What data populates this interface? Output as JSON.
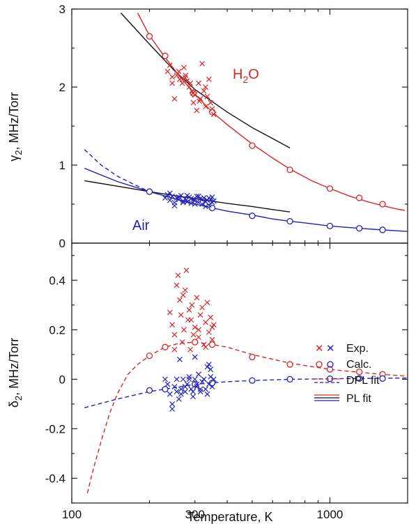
{
  "colors": {
    "h2o": "#d62728",
    "air": "#1f1fbf",
    "pl_h2o": "#111111",
    "axis": "#222222"
  },
  "chart_data": [
    {
      "type": "scatter",
      "panel": "top",
      "ylabel_symbol": "γ",
      "ylabel_sub": "2",
      "ylabel_unit": ", MHz/Torr",
      "xscale": "log",
      "xlim": [
        100,
        2000
      ],
      "ylim": [
        0,
        3
      ],
      "yticks": [
        "0",
        "1",
        "2",
        "3"
      ],
      "annotations": {
        "h2o_main": "H",
        "h2o_sub": "2",
        "h2o_end": "O",
        "air": "Air"
      },
      "series": [
        {
          "key": "h2o_calc",
          "color": "h2o",
          "marker": "circle",
          "x": [
            200,
            230,
            296,
            350,
            500,
            700,
            1000,
            1300,
            1600
          ],
          "y": [
            2.65,
            2.4,
            1.92,
            1.68,
            1.25,
            0.94,
            0.7,
            0.58,
            0.5
          ]
        },
        {
          "key": "h2o_exp",
          "color": "h2o",
          "marker": "x",
          "x": [
            235,
            240,
            245,
            250,
            255,
            262,
            268,
            272,
            276,
            280,
            285,
            288,
            292,
            296,
            300,
            305,
            310,
            315,
            320,
            325,
            330,
            335,
            340,
            345,
            350,
            355,
            245,
            260,
            275,
            295,
            312,
            330
          ],
          "y": [
            2.2,
            2.28,
            2.13,
            1.85,
            2.15,
            2.1,
            2.05,
            2.25,
            2.15,
            2.08,
            2.0,
            2.05,
            1.95,
            1.8,
            1.9,
            1.7,
            2.05,
            1.85,
            2.3,
            1.95,
            1.75,
            1.88,
            2.1,
            1.8,
            1.72,
            1.65,
            2.05,
            2.2,
            2.12,
            1.92,
            1.82,
            2.0
          ]
        },
        {
          "key": "h2o_pl",
          "color": "pl_h2o",
          "style": "solid",
          "x": [
            155,
            200,
            250,
            300,
            400,
            500,
            600,
            700
          ],
          "y": [
            2.95,
            2.55,
            2.21,
            1.97,
            1.68,
            1.48,
            1.34,
            1.22
          ]
        },
        {
          "key": "h2o_dpl",
          "color": "h2o",
          "style": "solid",
          "x": [
            180,
            200,
            230,
            260,
            296,
            350,
            400,
            500,
            600,
            700,
            850,
            1000,
            1200,
            1400,
            1600,
            1800,
            1950
          ],
          "y": [
            2.95,
            2.66,
            2.38,
            2.15,
            1.93,
            1.68,
            1.52,
            1.27,
            1.09,
            0.95,
            0.8,
            0.7,
            0.6,
            0.53,
            0.48,
            0.44,
            0.42
          ]
        },
        {
          "key": "air_calc",
          "color": "air",
          "marker": "circle",
          "x": [
            200,
            350,
            500,
            700,
            1000,
            1300,
            1600
          ],
          "y": [
            0.66,
            0.45,
            0.35,
            0.28,
            0.22,
            0.19,
            0.17
          ]
        },
        {
          "key": "air_exp",
          "color": "air",
          "marker": "x",
          "x": [
            230,
            235,
            240,
            245,
            250,
            255,
            260,
            265,
            270,
            275,
            280,
            285,
            290,
            295,
            300,
            305,
            310,
            315,
            320,
            325,
            330,
            335,
            340,
            345,
            350,
            355,
            240,
            260,
            280,
            300,
            320,
            340,
            250,
            270,
            290,
            310,
            330,
            350
          ],
          "y": [
            0.58,
            0.62,
            0.55,
            0.6,
            0.52,
            0.58,
            0.56,
            0.61,
            0.54,
            0.57,
            0.53,
            0.59,
            0.51,
            0.56,
            0.55,
            0.6,
            0.52,
            0.57,
            0.5,
            0.58,
            0.53,
            0.55,
            0.49,
            0.56,
            0.52,
            0.54,
            0.64,
            0.59,
            0.61,
            0.5,
            0.56,
            0.58,
            0.48,
            0.52,
            0.57,
            0.6,
            0.47,
            0.59
          ]
        },
        {
          "key": "air_pl_black",
          "color": "pl_h2o",
          "style": "solid",
          "x": [
            112,
            150,
            200,
            250,
            300,
            400,
            500,
            600,
            700
          ],
          "y": [
            0.8,
            0.73,
            0.66,
            0.61,
            0.57,
            0.51,
            0.47,
            0.43,
            0.4
          ]
        },
        {
          "key": "air_pl_blue",
          "color": "air",
          "style": "solid",
          "x": [
            112,
            150,
            200,
            250,
            300,
            400,
            500,
            600,
            700,
            800,
            1000,
            1300,
            1600,
            2000
          ],
          "y": [
            0.96,
            0.79,
            0.66,
            0.57,
            0.5,
            0.41,
            0.36,
            0.31,
            0.28,
            0.26,
            0.22,
            0.19,
            0.17,
            0.15
          ]
        },
        {
          "key": "air_dpl",
          "color": "air",
          "style": "dashed",
          "x": [
            112,
            130,
            150,
            175,
            200
          ],
          "y": [
            1.2,
            1.0,
            0.86,
            0.75,
            0.66
          ]
        }
      ]
    },
    {
      "type": "scatter",
      "panel": "bottom",
      "ylabel_symbol": "δ",
      "ylabel_sub": "2",
      "ylabel_unit": ", MHz/Torr",
      "xlabel": "Temperature, K",
      "xscale": "log",
      "xlim": [
        100,
        2000
      ],
      "ylim": [
        -0.5,
        0.55
      ],
      "yticks": [
        "-0.4",
        "-0.2",
        "0",
        "0.2",
        "0.4"
      ],
      "xticks": [
        "100",
        "300",
        "1000"
      ],
      "series": [
        {
          "key": "h2o_calc",
          "color": "h2o",
          "marker": "circle",
          "x": [
            200,
            230,
            300,
            350,
            500,
            700,
            1000,
            1300,
            1600
          ],
          "y": [
            0.095,
            0.13,
            0.15,
            0.14,
            0.09,
            0.06,
            0.04,
            0.03,
            0.02
          ]
        },
        {
          "key": "h2o_exp",
          "color": "h2o",
          "marker": "x",
          "x": [
            240,
            245,
            250,
            255,
            258,
            262,
            265,
            268,
            272,
            275,
            278,
            282,
            285,
            288,
            292,
            296,
            300,
            305,
            310,
            315,
            320,
            325,
            330,
            335,
            340,
            345,
            350,
            355,
            250,
            270,
            290,
            310,
            330,
            350
          ],
          "y": [
            0.27,
            0.22,
            0.18,
            0.38,
            0.42,
            0.32,
            0.26,
            0.15,
            0.2,
            0.36,
            0.44,
            0.24,
            0.28,
            0.12,
            0.3,
            0.18,
            0.21,
            0.33,
            0.17,
            0.26,
            0.29,
            0.14,
            0.23,
            0.31,
            0.19,
            0.25,
            0.16,
            0.22,
            0.12,
            0.34,
            0.24,
            0.2,
            0.13,
            0.21
          ]
        },
        {
          "key": "h2o_dpl",
          "color": "h2o",
          "style": "dashed",
          "x": [
            115,
            120,
            130,
            140,
            150,
            165,
            180,
            200,
            230,
            260,
            300,
            350,
            400,
            500,
            700,
            1000,
            1300,
            1600,
            2000
          ],
          "y": [
            -0.46,
            -0.38,
            -0.25,
            -0.14,
            -0.06,
            0.02,
            0.06,
            0.095,
            0.13,
            0.145,
            0.15,
            0.14,
            0.13,
            0.1,
            0.065,
            0.04,
            0.028,
            0.02,
            0.012
          ]
        },
        {
          "key": "air_calc",
          "color": "air",
          "marker": "circle",
          "x": [
            200,
            230,
            300,
            350,
            500,
            700,
            1000,
            1300,
            1600
          ],
          "y": [
            -0.045,
            -0.04,
            -0.02,
            -0.015,
            -0.005,
            0.0,
            0.002,
            0.003,
            0.003
          ]
        },
        {
          "key": "air_exp",
          "color": "air",
          "marker": "x",
          "x": [
            230,
            235,
            240,
            245,
            250,
            255,
            260,
            265,
            270,
            275,
            280,
            285,
            290,
            295,
            300,
            305,
            310,
            315,
            320,
            325,
            330,
            335,
            340,
            345,
            350,
            355,
            245,
            255,
            265,
            275,
            285,
            295,
            305,
            315,
            325,
            335,
            345,
            262,
            300,
            340
          ],
          "y": [
            0.0,
            -0.02,
            -0.06,
            -0.1,
            -0.03,
            0.0,
            -0.08,
            -0.04,
            0.0,
            -0.05,
            -0.02,
            0.01,
            -0.04,
            -0.07,
            0.0,
            -0.03,
            0.02,
            -0.05,
            -0.01,
            0.0,
            -0.04,
            0.05,
            -0.02,
            0.01,
            -0.03,
            0.0,
            -0.12,
            -0.05,
            -0.06,
            -0.03,
            0.0,
            -0.05,
            -0.02,
            -0.04,
            0.0,
            -0.06,
            0.04,
            0.08,
            0.09,
            0.06
          ]
        },
        {
          "key": "air_dpl",
          "color": "air",
          "style": "dashed",
          "x": [
            112,
            150,
            200,
            300,
            400,
            500,
            700,
            1000,
            1500,
            2000
          ],
          "y": [
            -0.115,
            -0.08,
            -0.05,
            -0.02,
            -0.01,
            -0.005,
            0.0,
            0.002,
            0.004,
            0.005
          ]
        }
      ],
      "legend": {
        "position": "bottom-right",
        "items": [
          {
            "label": "Exp.",
            "kind": "x"
          },
          {
            "label": "Calc.",
            "kind": "circle"
          },
          {
            "label": "DPL fit",
            "kind": "dashed"
          },
          {
            "label": "PL fit",
            "kind": "solid"
          }
        ]
      }
    }
  ]
}
